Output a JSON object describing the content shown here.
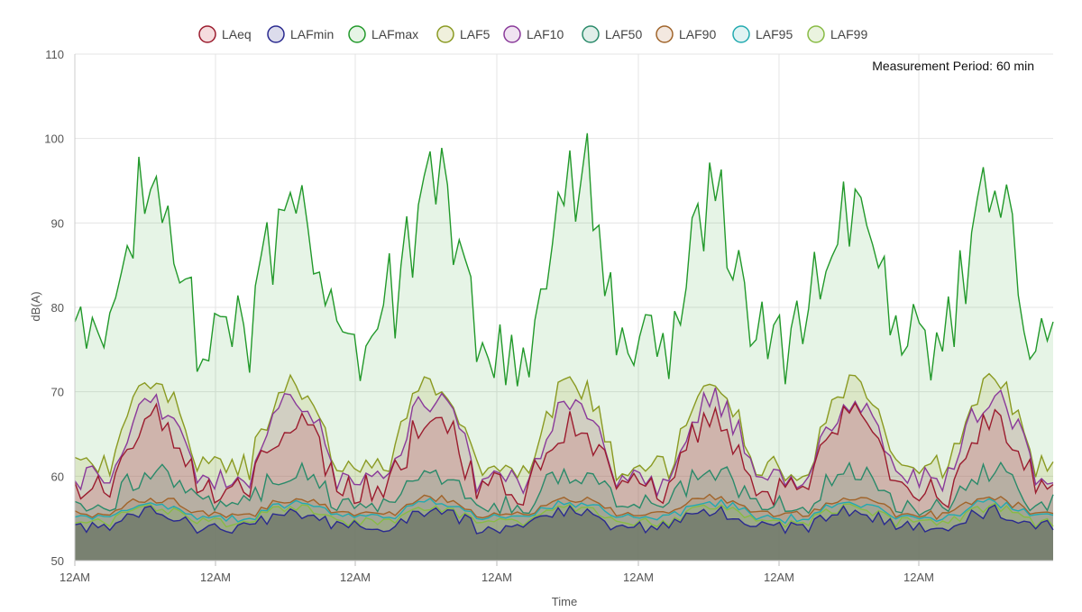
{
  "chart_data": {
    "type": "area",
    "annotation": "Measurement Period: 60 min",
    "xlabel": "Time",
    "ylabel": "dB(A)",
    "ylim": [
      50,
      110
    ],
    "y_ticks": [
      50,
      60,
      70,
      80,
      90,
      100,
      110
    ],
    "x_tick_labels": [
      "12AM",
      "12AM",
      "12AM",
      "12AM",
      "12AM",
      "12AM",
      "12AM"
    ],
    "hours": 168,
    "grid": true,
    "legend_position": "top-center",
    "series": [
      {
        "name": "LAeq",
        "color": "#9b1c2e",
        "fill": "rgba(200,60,70,0.18)"
      },
      {
        "name": "LAFmin",
        "color": "#2a2a8f",
        "fill": "rgba(60,60,150,0.18)"
      },
      {
        "name": "LAFmax",
        "color": "#22992b",
        "fill": "rgba(60,170,60,0.13)"
      },
      {
        "name": "LAF5",
        "color": "#8a9a22",
        "fill": "rgba(170,170,60,0.18)"
      },
      {
        "name": "LAF10",
        "color": "#8a3a9a",
        "fill": "rgba(160,80,170,0.16)"
      },
      {
        "name": "LAF50",
        "color": "#2a8a6a",
        "fill": "rgba(60,150,120,0.16)"
      },
      {
        "name": "LAF90",
        "color": "#a0642a",
        "fill": "rgba(180,110,60,0.16)"
      },
      {
        "name": "LAF95",
        "color": "#22aab0",
        "fill": "rgba(60,180,180,0.16)"
      },
      {
        "name": "LAF99",
        "color": "#88bb44",
        "fill": "rgba(140,190,80,0.18)"
      }
    ],
    "day_profiles": {
      "LAFmax_night": 76,
      "LAFmax_day": 92,
      "LAF5_night": 61,
      "LAF5_day": 71,
      "LAF10_night": 59.5,
      "LAF10_day": 69,
      "LAeq_night": 58.5,
      "LAeq_day": 66.5,
      "LAF50_night": 56.5,
      "LAF50_day": 60.5,
      "LAF90_night": 55.3,
      "LAF90_day": 57.3,
      "LAF95_night": 55,
      "LAF95_day": 56.8,
      "LAF99_night": 54.5,
      "LAF99_day": 56.2,
      "LAFmin_night": 54,
      "LAFmin_day": 55.8
    }
  }
}
